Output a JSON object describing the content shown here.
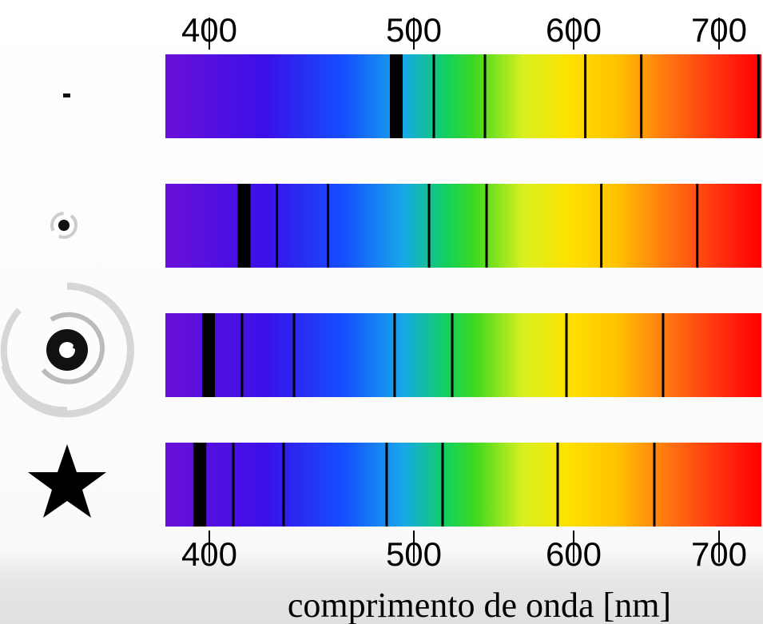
{
  "spectra_chart": {
    "xlim": [
      378,
      729
    ],
    "xticks": [
      400,
      500,
      600,
      700
    ],
    "x_label": "comprimento de onda [nm]",
    "spectra": [
      {
        "lines": [
          491.4,
          512.5,
          544.5,
          608,
          646.5,
          727
        ]
      },
      {
        "lines": [
          417,
          433,
          458,
          509.5,
          545.5,
          619,
          685
        ]
      },
      {
        "lines": [
          399.6,
          416,
          441.4,
          490.6,
          524,
          595.5,
          661.5
        ]
      },
      {
        "lines": [
          395.3,
          411.7,
          436.3,
          486.7,
          518,
          590,
          655.5
        ]
      }
    ]
  }
}
